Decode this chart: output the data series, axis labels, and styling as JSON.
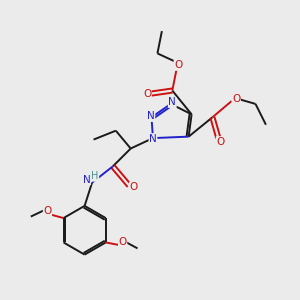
{
  "bg_color": "#ebebeb",
  "atom_colors": {
    "C": "#1a1a1a",
    "N": "#2222cc",
    "O": "#cc1111",
    "H": "#4a9090"
  },
  "bond_color": "#1a1a1a",
  "bond_width": 1.4
}
